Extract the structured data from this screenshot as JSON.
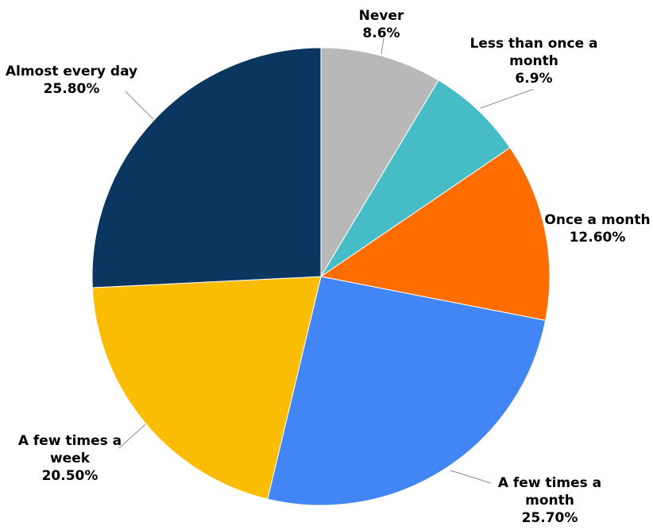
{
  "chart_data": {
    "type": "pie",
    "title": "",
    "start_angle_deg": 0,
    "direction": "clockwise",
    "slices": [
      {
        "label_lines": [
          "Never"
        ],
        "value_text": "8.6%",
        "value": 8.6,
        "color": "#b8b8b8"
      },
      {
        "label_lines": [
          "Less than once a",
          "month"
        ],
        "value_text": "6.9%",
        "value": 6.9,
        "color": "#46bdc6"
      },
      {
        "label_lines": [
          "Once a month"
        ],
        "value_text": "12.60%",
        "value": 12.6,
        "color": "#ff6d01"
      },
      {
        "label_lines": [
          "A few times a",
          "month"
        ],
        "value_text": "25.70%",
        "value": 25.7,
        "color": "#4285f4"
      },
      {
        "label_lines": [
          "A few times a",
          "week"
        ],
        "value_text": "20.50%",
        "value": 20.5,
        "color": "#fbbc04"
      },
      {
        "label_lines": [
          "Almost every day"
        ],
        "value_text": "25.80%",
        "value": 25.8,
        "color": "#0b365f"
      }
    ],
    "legend": "none",
    "data_labels": "outside with leader lines"
  }
}
